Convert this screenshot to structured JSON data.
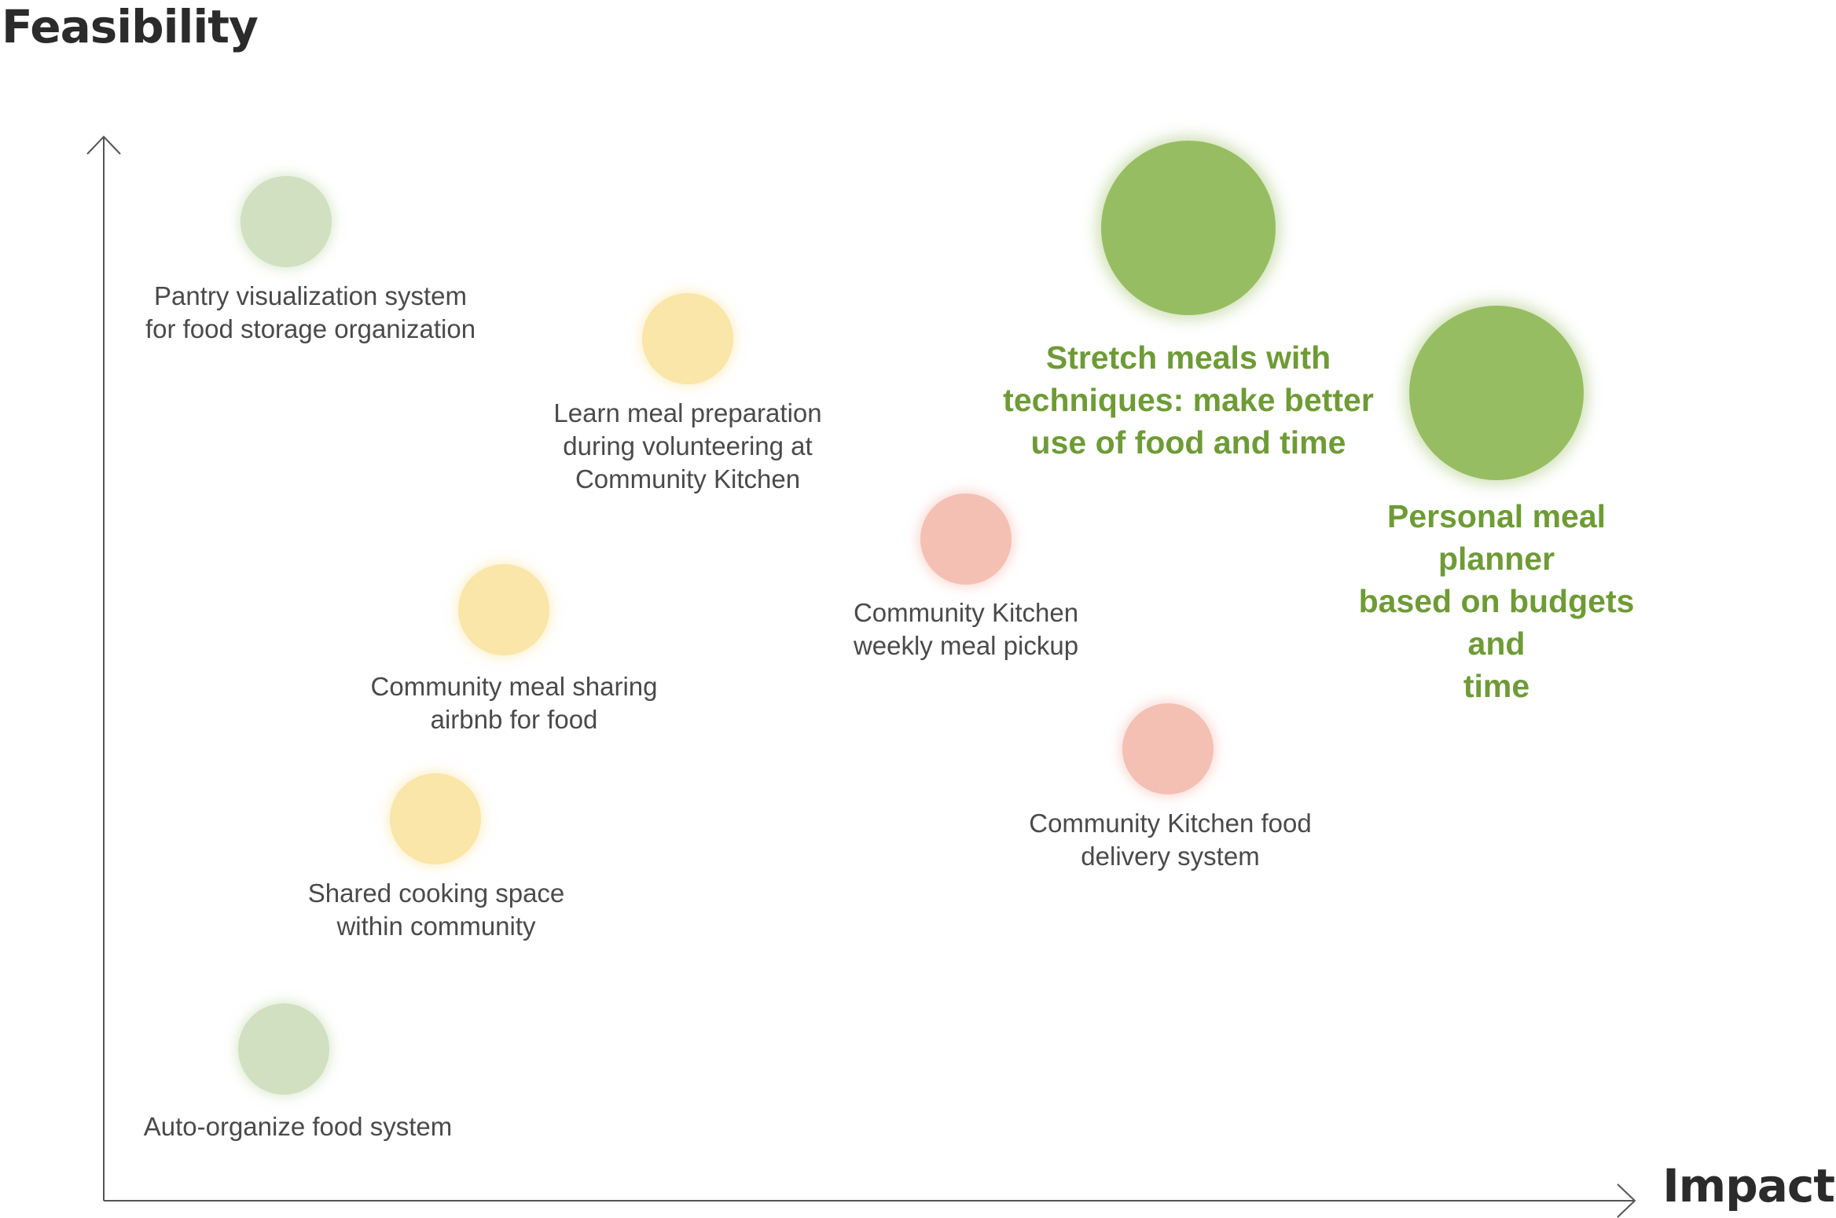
{
  "axes": {
    "y_label": "Feasibility",
    "x_label": "Impact"
  },
  "ideas": [
    {
      "label": "Pantry visualization system\nfor food storage organization",
      "tier": "low"
    },
    {
      "label": "Learn meal preparation\nduring volunteering at\nCommunity Kitchen",
      "tier": "medium"
    },
    {
      "label": "Stretch meals with\ntechniques: make better\nuse of food and time",
      "tier": "top"
    },
    {
      "label": "Personal meal planner\nbased on budgets and\ntime",
      "tier": "top"
    },
    {
      "label": "Community Kitchen\nweekly meal pickup",
      "tier": "high"
    },
    {
      "label": "Community meal sharing\nairbnb for food",
      "tier": "medium"
    },
    {
      "label": "Community Kitchen food\ndelivery system",
      "tier": "high"
    },
    {
      "label": "Shared cooking space\nwithin community",
      "tier": "medium"
    },
    {
      "label": "Auto-organize food system",
      "tier": "low"
    }
  ],
  "colors": {
    "low": "#d0e0c0",
    "medium": "#f9e6a8",
    "high": "#f4c0b4",
    "top": "#97bd62",
    "top_text": "#6e9b36",
    "text": "#4a4a4a",
    "axis": "#555555"
  }
}
